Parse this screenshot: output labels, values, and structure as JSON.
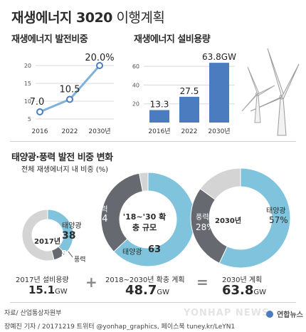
{
  "header": {
    "title_main": "재생에너지 3020",
    "title_sub": " 이행계획"
  },
  "colors": {
    "blue": "#4b7cc0",
    "light_blue": "#7fc3dd",
    "dark_gray": "#666a70",
    "light_gray": "#d4d4d4",
    "text": "#2b2b2b"
  },
  "chart_data": [
    {
      "type": "line",
      "title": "재생에너지 발전비중",
      "x": [
        "2016",
        "2022",
        "2030년"
      ],
      "values": [
        7.0,
        10.5,
        20.0
      ],
      "value_labels": [
        "7.0",
        "10.5",
        "20.0%"
      ],
      "y_ticks": [
        "20",
        "15",
        "10",
        "5"
      ],
      "ylim": [
        5,
        20
      ],
      "grid": true
    },
    {
      "type": "bar",
      "title": "재생에너지 설비용량",
      "categories": [
        "2016년",
        "2022",
        "2030년"
      ],
      "values": [
        13.3,
        27.5,
        63.8
      ],
      "value_labels": [
        "13.3",
        "27.5",
        "63.8GW"
      ],
      "y_ticks": [
        "60",
        "40",
        "20"
      ],
      "ylim": [
        0,
        70
      ],
      "grid": true
    },
    {
      "type": "pie",
      "label": "2017년",
      "slices": [
        {
          "name": "태양광",
          "value": 38,
          "label": "38"
        },
        {
          "name": "풍력",
          "value": 8,
          "label": "8"
        }
      ],
      "other_share": 54
    },
    {
      "type": "pie",
      "label": "'18~'30 확충 규모",
      "slices": [
        {
          "name": "풍력",
          "value": 34,
          "label": "34"
        },
        {
          "name": "태양광",
          "value": 63,
          "label": "63"
        }
      ],
      "other_share": 3
    },
    {
      "type": "pie",
      "label": "2030년",
      "slices": [
        {
          "name": "풍력",
          "value": 28,
          "label": "28%"
        },
        {
          "name": "태양광",
          "value": 57,
          "label": "57%"
        }
      ],
      "other_share": 15
    }
  ],
  "share_section": {
    "title": "태양광·풍력 발전 비중 변화",
    "subtitle": "전체 재생에너지 내 비중 (%)"
  },
  "summary": {
    "item1_caption": "2017년 설비용량",
    "item1_value": "15.1",
    "item1_unit": "GW",
    "op_plus": "+",
    "item2_caption": "2018~2030년 확충 계획",
    "item2_value": "48.7",
    "item2_unit": "GW",
    "op_eq": "=",
    "item3_caption": "2030년 계획",
    "item3_value": "63.8",
    "item3_unit": "GW"
  },
  "footer": {
    "source": "자료/ 산업통상자원부",
    "credit": "장예진 기자 / 20171219 트위터 @yonhap_graphics, 페이스북 tuney.kr/LeYN1",
    "watermark": "YONHAP NEWS",
    "logo_text": "연합뉴스"
  }
}
